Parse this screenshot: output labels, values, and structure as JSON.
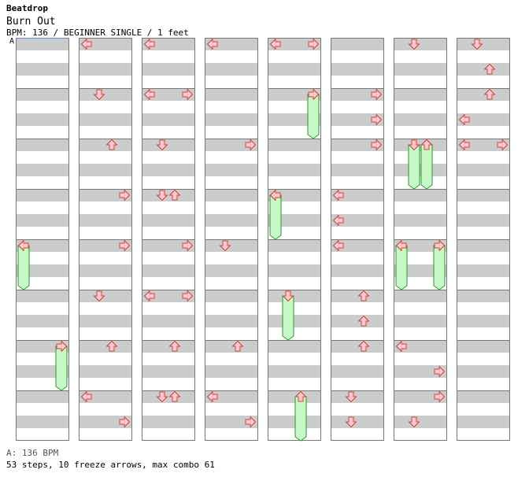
{
  "header": {
    "site_title": "Beatdrop",
    "song_title": "Burn Out",
    "meta_line": "BPM: 136 / BEGINNER SINGLE / 1 feet"
  },
  "bpm_marker": {
    "label": "A"
  },
  "footer": {
    "bpm_line": "A: 136 BPM",
    "stats_line": "53 steps, 10 freeze arrows, max combo 61"
  },
  "colors": {
    "arrow_fill": "#ffc8c8",
    "arrow_stroke": "#d04040",
    "freeze_fill": "#c8f7c8",
    "freeze_stroke": "#2a9a2a",
    "stripe": "#cccccc",
    "border": "#777777",
    "bpm_marker": "#6b8fc6"
  },
  "chart_data": {
    "type": "step-chart",
    "columns": 8,
    "measures_per_column": 8,
    "beats_per_measure": 4,
    "lanes": [
      "left",
      "down",
      "up",
      "right"
    ],
    "notes": [
      {
        "col": 1,
        "measure": 0,
        "beat": 0,
        "lane": "left"
      },
      {
        "col": 1,
        "measure": 1,
        "beat": 0,
        "lane": "down"
      },
      {
        "col": 1,
        "measure": 2,
        "beat": 0,
        "lane": "up"
      },
      {
        "col": 1,
        "measure": 3,
        "beat": 0,
        "lane": "right"
      },
      {
        "col": 1,
        "measure": 4,
        "beat": 0,
        "lane": "right"
      },
      {
        "col": 1,
        "measure": 5,
        "beat": 0,
        "lane": "down"
      },
      {
        "col": 1,
        "measure": 6,
        "beat": 0,
        "lane": "up"
      },
      {
        "col": 1,
        "measure": 7,
        "beat": 0,
        "lane": "left"
      },
      {
        "col": 1,
        "measure": 7,
        "beat": 2,
        "lane": "right"
      },
      {
        "col": 2,
        "measure": 0,
        "beat": 0,
        "lane": "left"
      },
      {
        "col": 2,
        "measure": 1,
        "beat": 0,
        "lane": "left"
      },
      {
        "col": 2,
        "measure": 1,
        "beat": 0,
        "lane": "right"
      },
      {
        "col": 2,
        "measure": 2,
        "beat": 0,
        "lane": "down"
      },
      {
        "col": 2,
        "measure": 3,
        "beat": 0,
        "lane": "down"
      },
      {
        "col": 2,
        "measure": 3,
        "beat": 0,
        "lane": "up"
      },
      {
        "col": 2,
        "measure": 4,
        "beat": 0,
        "lane": "right"
      },
      {
        "col": 2,
        "measure": 5,
        "beat": 0,
        "lane": "left"
      },
      {
        "col": 2,
        "measure": 5,
        "beat": 0,
        "lane": "right"
      },
      {
        "col": 2,
        "measure": 6,
        "beat": 0,
        "lane": "up"
      },
      {
        "col": 2,
        "measure": 7,
        "beat": 0,
        "lane": "down"
      },
      {
        "col": 2,
        "measure": 7,
        "beat": 0,
        "lane": "up"
      },
      {
        "col": 3,
        "measure": 0,
        "beat": 0,
        "lane": "left"
      },
      {
        "col": 3,
        "measure": 2,
        "beat": 0,
        "lane": "right"
      },
      {
        "col": 3,
        "measure": 4,
        "beat": 0,
        "lane": "down"
      },
      {
        "col": 3,
        "measure": 6,
        "beat": 0,
        "lane": "up"
      },
      {
        "col": 3,
        "measure": 7,
        "beat": 0,
        "lane": "left"
      },
      {
        "col": 3,
        "measure": 7,
        "beat": 2,
        "lane": "right"
      },
      {
        "col": 4,
        "measure": 0,
        "beat": 0,
        "lane": "left"
      },
      {
        "col": 4,
        "measure": 0,
        "beat": 0,
        "lane": "right"
      },
      {
        "col": 4,
        "measure": 3,
        "beat": 0,
        "lane": "left"
      },
      {
        "col": 5,
        "measure": 1,
        "beat": 0,
        "lane": "right"
      },
      {
        "col": 5,
        "measure": 1,
        "beat": 2,
        "lane": "right"
      },
      {
        "col": 5,
        "measure": 2,
        "beat": 0,
        "lane": "right"
      },
      {
        "col": 5,
        "measure": 3,
        "beat": 0,
        "lane": "left"
      },
      {
        "col": 5,
        "measure": 3,
        "beat": 2,
        "lane": "left"
      },
      {
        "col": 5,
        "measure": 4,
        "beat": 0,
        "lane": "left"
      },
      {
        "col": 5,
        "measure": 5,
        "beat": 0,
        "lane": "up"
      },
      {
        "col": 5,
        "measure": 5,
        "beat": 2,
        "lane": "up"
      },
      {
        "col": 5,
        "measure": 6,
        "beat": 0,
        "lane": "up"
      },
      {
        "col": 5,
        "measure": 7,
        "beat": 0,
        "lane": "down"
      },
      {
        "col": 5,
        "measure": 7,
        "beat": 2,
        "lane": "down"
      },
      {
        "col": 6,
        "measure": 0,
        "beat": 0,
        "lane": "down"
      },
      {
        "col": 6,
        "measure": 2,
        "beat": 0,
        "lane": "up"
      },
      {
        "col": 6,
        "measure": 6,
        "beat": 0,
        "lane": "left"
      },
      {
        "col": 6,
        "measure": 6,
        "beat": 2,
        "lane": "right"
      },
      {
        "col": 6,
        "measure": 7,
        "beat": 0,
        "lane": "right"
      },
      {
        "col": 6,
        "measure": 7,
        "beat": 2,
        "lane": "down"
      },
      {
        "col": 7,
        "measure": 0,
        "beat": 0,
        "lane": "down"
      },
      {
        "col": 7,
        "measure": 0,
        "beat": 2,
        "lane": "up"
      },
      {
        "col": 7,
        "measure": 1,
        "beat": 0,
        "lane": "up"
      },
      {
        "col": 7,
        "measure": 1,
        "beat": 2,
        "lane": "left"
      },
      {
        "col": 7,
        "measure": 2,
        "beat": 0,
        "lane": "left"
      },
      {
        "col": 7,
        "measure": 2,
        "beat": 0,
        "lane": "right"
      }
    ],
    "freezes": [
      {
        "col": 0,
        "lane": "left",
        "start_measure": 4,
        "start_beat": 0,
        "end_measure": 5,
        "end_beat": 0
      },
      {
        "col": 0,
        "lane": "right",
        "start_measure": 6,
        "start_beat": 0,
        "end_measure": 7,
        "end_beat": 0
      },
      {
        "col": 4,
        "lane": "right",
        "start_measure": 1,
        "start_beat": 0,
        "end_measure": 2,
        "end_beat": 0
      },
      {
        "col": 4,
        "lane": "left",
        "start_measure": 3,
        "start_beat": 0,
        "end_measure": 4,
        "end_beat": 0
      },
      {
        "col": 4,
        "lane": "down",
        "start_measure": 5,
        "start_beat": 0,
        "end_measure": 6,
        "end_beat": 0
      },
      {
        "col": 4,
        "lane": "up",
        "start_measure": 7,
        "start_beat": 0,
        "end_measure": 8,
        "end_beat": 0
      },
      {
        "col": 6,
        "lane": "down",
        "start_measure": 2,
        "start_beat": 0,
        "end_measure": 3,
        "end_beat": 0
      },
      {
        "col": 6,
        "lane": "up",
        "start_measure": 2,
        "start_beat": 0,
        "end_measure": 3,
        "end_beat": 0
      },
      {
        "col": 6,
        "lane": "left",
        "start_measure": 4,
        "start_beat": 0,
        "end_measure": 5,
        "end_beat": 0
      },
      {
        "col": 6,
        "lane": "right",
        "start_measure": 4,
        "start_beat": 0,
        "end_measure": 5,
        "end_beat": 0
      }
    ]
  }
}
